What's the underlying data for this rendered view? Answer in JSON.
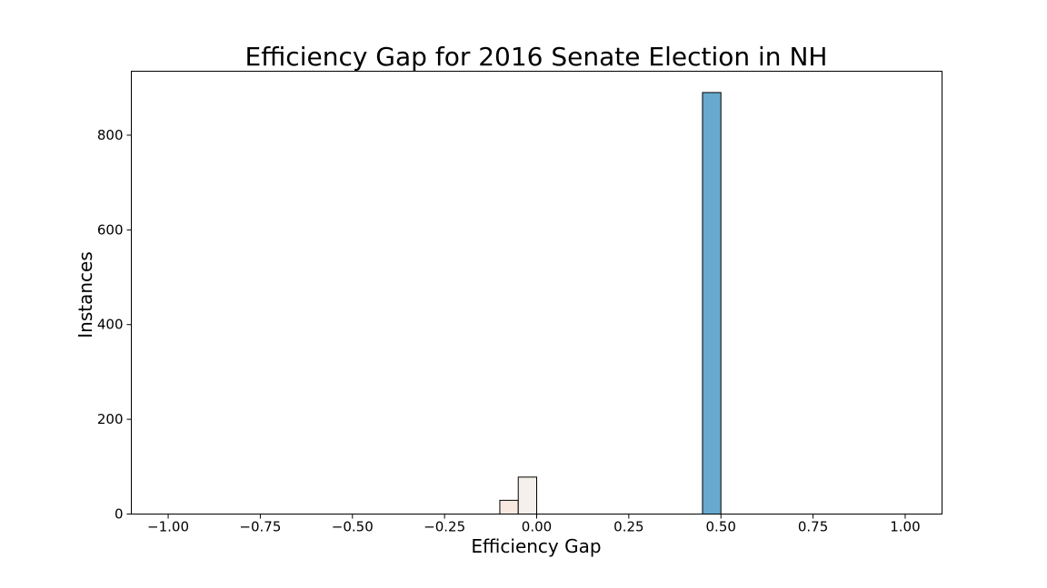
{
  "chart_data": {
    "type": "bar",
    "title": "Efficiency Gap for 2016 Senate Election in NH",
    "xlabel": "Efficiency Gap",
    "ylabel": "Instances",
    "xlim": [
      -1.1,
      1.1
    ],
    "ylim": [
      0,
      935
    ],
    "x_ticks": [
      -1.0,
      -0.75,
      -0.5,
      -0.25,
      0.0,
      0.25,
      0.5,
      0.75,
      1.0
    ],
    "x_tick_labels": [
      "−1.00",
      "−0.75",
      "−0.50",
      "−0.25",
      "0.00",
      "0.25",
      "0.50",
      "0.75",
      "1.00"
    ],
    "y_ticks": [
      0,
      200,
      400,
      600,
      800
    ],
    "y_tick_labels": [
      "0",
      "200",
      "400",
      "600",
      "800"
    ],
    "bin_width": 0.05,
    "bins": [
      {
        "x0": -0.1,
        "x1": -0.05,
        "count": 29,
        "color": "#f7e9e0"
      },
      {
        "x0": -0.05,
        "x1": 0.0,
        "count": 78,
        "color": "#f5f0eb"
      },
      {
        "x0": 0.45,
        "x1": 0.5,
        "count": 890,
        "color": "#67a9cf"
      }
    ],
    "grid": false,
    "legend": "none"
  }
}
